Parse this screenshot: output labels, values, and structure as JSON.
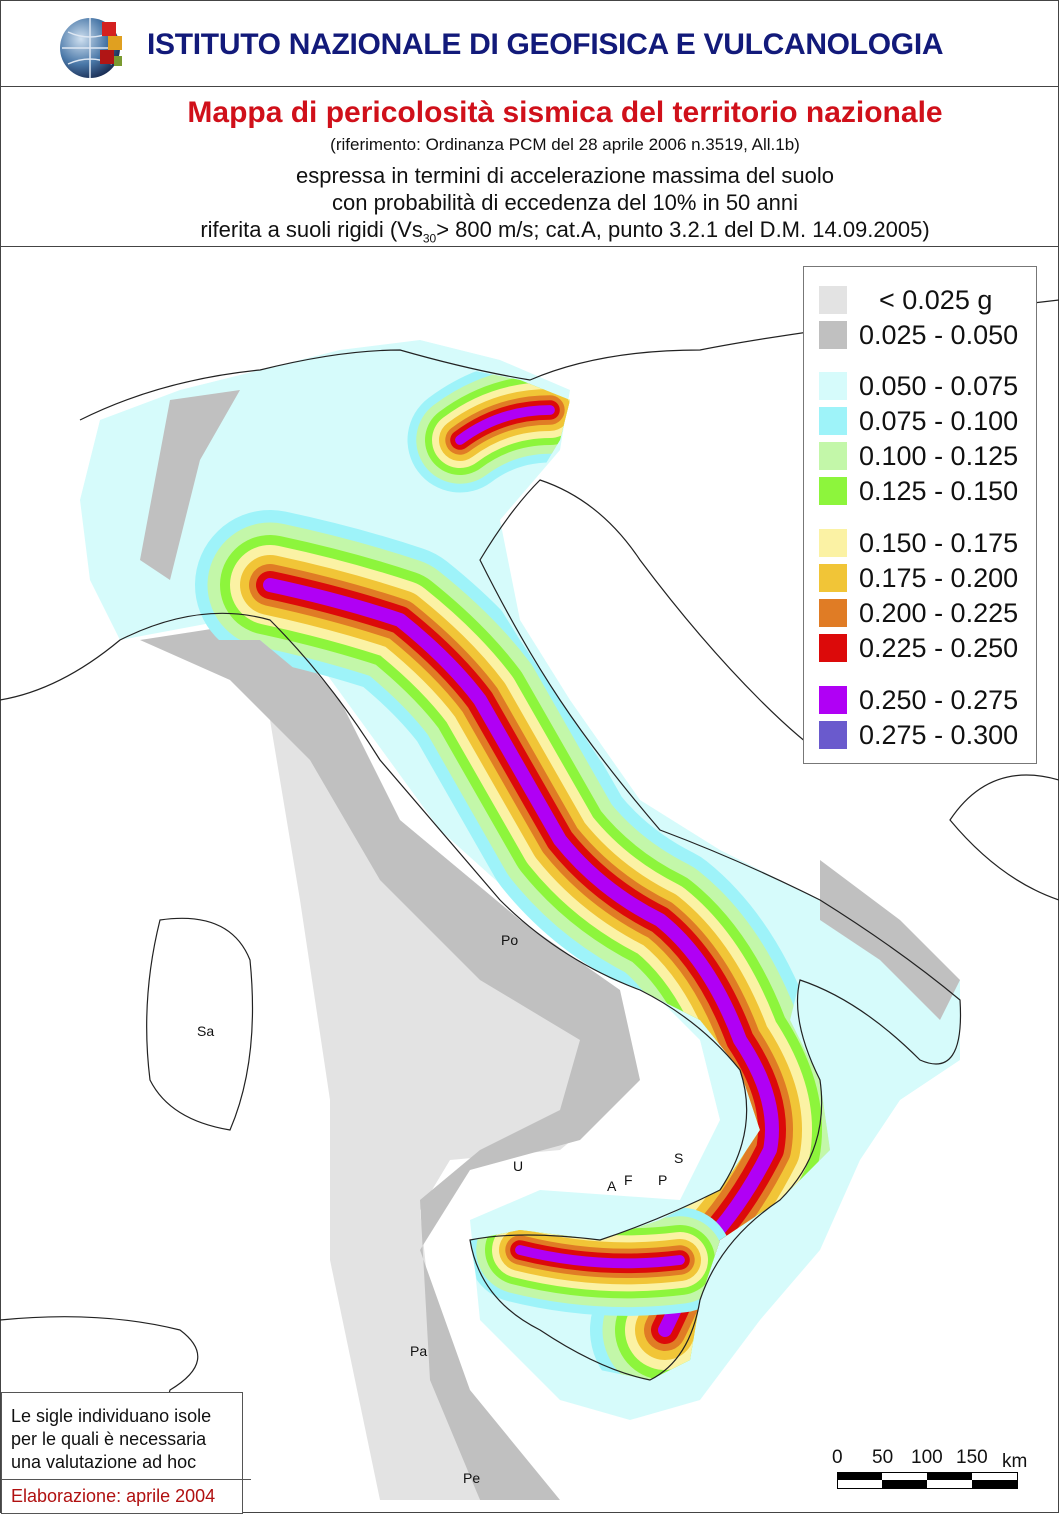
{
  "header": {
    "institute": "ISTITUTO NAZIONALE DI GEOFISICA E VULCANOLOGIA"
  },
  "title": {
    "main": "Mappa di pericolosità sismica del territorio nazionale",
    "reference": "(riferimento: Ordinanza PCM del 28 aprile 2006 n.3519, All.1b)",
    "line1": "espressa in termini di accelerazione massima del suolo",
    "line2": "con probabilità di eccedenza del 10% in 50 anni",
    "line3_pre": "riferita a suoli rigidi (Vs",
    "line3_sub": "30",
    "line3_post": "> 800 m/s; cat.A, punto 3.2.1 del D.M. 14.09.2005)"
  },
  "legend": {
    "items": [
      {
        "label": "< 0.025 g",
        "color": "#e3e3e3"
      },
      {
        "label": "0.025 - 0.050",
        "color": "#c0c0c0"
      },
      {
        "label": "0.050 - 0.075",
        "color": "#d6fbfb"
      },
      {
        "label": "0.075 - 0.100",
        "color": "#9ef3f9"
      },
      {
        "label": "0.100 - 0.125",
        "color": "#c3f7a9"
      },
      {
        "label": "0.125 - 0.150",
        "color": "#8df53c"
      },
      {
        "label": "0.150 - 0.175",
        "color": "#fbf2a4"
      },
      {
        "label": "0.175 - 0.200",
        "color": "#f1c537"
      },
      {
        "label": "0.200 - 0.225",
        "color": "#e07c25"
      },
      {
        "label": "0.225 - 0.250",
        "color": "#dc0a0a"
      },
      {
        "label": "0.250 - 0.275",
        "color": "#b000f5"
      },
      {
        "label": "0.275 - 0.300",
        "color": "#6a5acd"
      }
    ]
  },
  "island_labels": [
    "Po",
    "Sa",
    "U",
    "A",
    "F",
    "P",
    "S",
    "Pa",
    "Pe"
  ],
  "note": {
    "text": "Le sigle individuano isole per le quali è necessaria una valutazione ad hoc",
    "footer": "Elaborazione: aprile 2004"
  },
  "scale_bar": {
    "ticks": [
      "0",
      "50",
      "100",
      "150"
    ],
    "unit": "km"
  }
}
